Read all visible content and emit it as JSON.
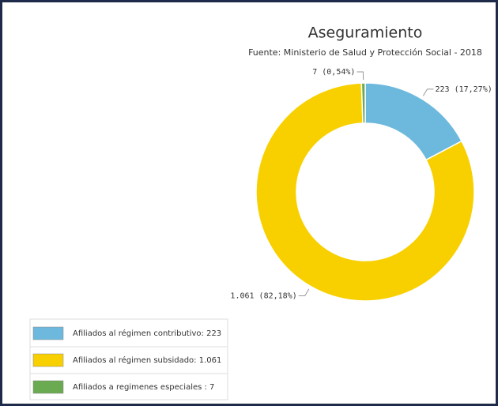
{
  "chart_data": {
    "type": "donut",
    "title": "Aseguramiento",
    "subtitle": "Fuente: Ministerio de Salud y Protección Social - 2018",
    "categories": [
      "Afiliados al régimen contributivo: 223",
      "Afiliados al régimen subsidado: 1.061",
      "Afiliados a regimenes especiales : 7"
    ],
    "values": [
      223,
      1061,
      7
    ],
    "value_labels": [
      "223 (17,27%)",
      "1.061 (82,18%)",
      "7 (0,54%)"
    ],
    "colors": [
      "#6cb9dd",
      "#f8d000",
      "#6aaa50"
    ]
  }
}
